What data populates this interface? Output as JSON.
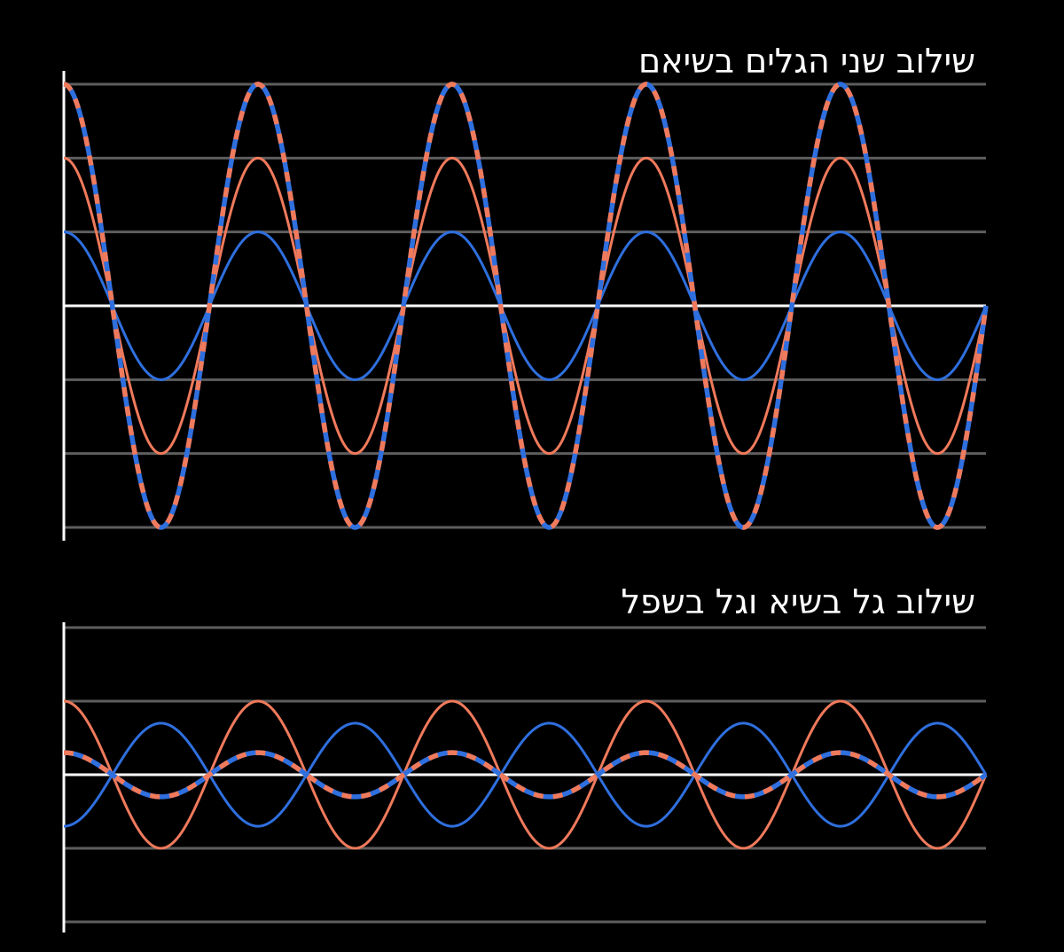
{
  "colors": {
    "background": "#000000",
    "grid": "#5e5e5e",
    "axis": "#ffffff",
    "wave_blue": "#2f6fde",
    "wave_orange": "#f07a5c"
  },
  "panels": [
    {
      "id": "constructive",
      "title": "שילוב שני הגלים בשיאם",
      "grid_levels": [
        3,
        2,
        1,
        -1,
        -2,
        -3
      ],
      "y_range": [
        -3,
        3
      ],
      "x_range": [
        0,
        4.75
      ],
      "waves": [
        {
          "name": "blue",
          "amplitude": 1,
          "cycles": 4.75,
          "style": "solid",
          "color": "#2f6fde"
        },
        {
          "name": "orange",
          "amplitude": 2,
          "cycles": 4.75,
          "style": "solid",
          "color": "#f07a5c"
        },
        {
          "name": "sum",
          "amplitude": 3,
          "cycles": 4.75,
          "style": "dashed",
          "color": "#2f6fde",
          "dash_color": "#f07a5c"
        }
      ]
    },
    {
      "id": "destructive",
      "title": "שילוב גל בשיא וגל בשפל",
      "grid_levels": [
        4,
        2,
        -2,
        -4
      ],
      "y_range": [
        -4,
        4
      ],
      "x_range": [
        0,
        4.75
      ],
      "waves": [
        {
          "name": "blue",
          "amplitude": -1.4,
          "cycles": 4.75,
          "style": "solid",
          "color": "#2f6fde"
        },
        {
          "name": "orange",
          "amplitude": 2,
          "cycles": 4.75,
          "style": "solid",
          "color": "#f07a5c"
        },
        {
          "name": "sum",
          "amplitude": 0.6,
          "cycles": 4.75,
          "style": "dashed",
          "color": "#2f6fde",
          "dash_color": "#f07a5c"
        }
      ]
    }
  ]
}
